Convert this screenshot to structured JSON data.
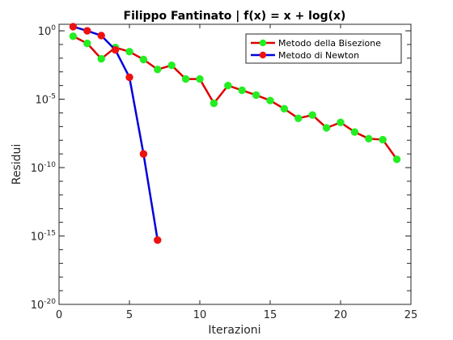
{
  "chart_data": {
    "type": "line",
    "title": "Filippo Fantinato | f(x) = x + log(x)",
    "xlabel": "Iterazioni",
    "ylabel": "Residui",
    "xlim": [
      0,
      25
    ],
    "ylim": [
      1e-20,
      3
    ],
    "yscale": "log",
    "xticks": [
      0,
      5,
      10,
      15,
      20,
      25
    ],
    "yticks": [
      {
        "base": "10",
        "exp": "-20",
        "value": 1e-20
      },
      {
        "base": "10",
        "exp": "-15",
        "value": 1e-15
      },
      {
        "base": "10",
        "exp": "-10",
        "value": 1e-10
      },
      {
        "base": "10",
        "exp": "-5",
        "value": 1e-05
      },
      {
        "base": "10",
        "exp": "0",
        "value": 1
      }
    ],
    "grid": false,
    "legend": "top-right",
    "series": [
      {
        "name": "Metodo della Bisezione",
        "line_color": "#dd0000",
        "marker_color": "#22ee22",
        "x": [
          1,
          2,
          3,
          4,
          5,
          6,
          7,
          8,
          9,
          10,
          11,
          12,
          13,
          14,
          15,
          16,
          17,
          18,
          19,
          20,
          21,
          22,
          23,
          24
        ],
        "y": [
          0.4,
          0.12,
          0.009,
          0.06,
          0.03,
          0.008,
          0.0015,
          0.003,
          0.0003,
          0.0003,
          5e-06,
          0.0001,
          4.5e-05,
          2e-05,
          8e-06,
          2e-06,
          4e-07,
          7e-07,
          8e-08,
          2e-07,
          4e-08,
          1.3e-08,
          1.1e-08,
          4e-10
        ]
      },
      {
        "name": "Metodo di Newton",
        "line_color": "#0000dd",
        "marker_color": "#ee1111",
        "x": [
          1,
          2,
          3,
          4,
          5,
          6,
          7
        ],
        "y": [
          2,
          1,
          0.45,
          0.04,
          0.0004,
          1e-09,
          5e-16
        ]
      }
    ]
  }
}
